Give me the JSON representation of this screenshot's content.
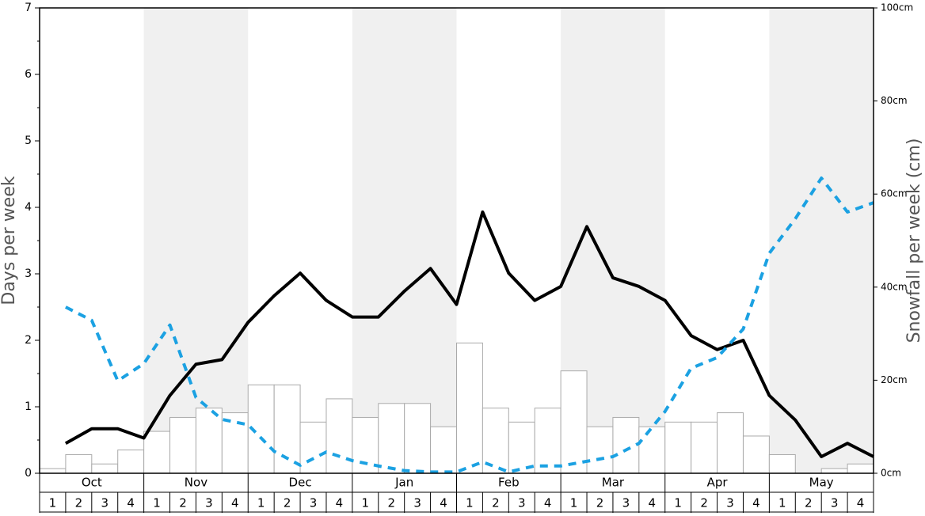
{
  "chart_data": {
    "type": "bar",
    "ylabel": "Days per week",
    "y2label": "Snowfall per week (cm)",
    "months": [
      "Oct",
      "Nov",
      "Dec",
      "Jan",
      "Feb",
      "Mar",
      "Apr",
      "May"
    ],
    "categories": [
      "1",
      "2",
      "3",
      "4",
      "1",
      "2",
      "3",
      "4",
      "1",
      "2",
      "3",
      "4",
      "1",
      "2",
      "3",
      "4",
      "1",
      "2",
      "3",
      "4",
      "1",
      "2",
      "3",
      "4",
      "1",
      "2",
      "3",
      "4",
      "1",
      "2",
      "3",
      "4"
    ],
    "ylim": [
      0,
      7
    ],
    "yticks": [
      0,
      1,
      2,
      3,
      4,
      5,
      6,
      7
    ],
    "yminorticks": [
      0.5,
      1.5,
      2.5,
      3.5,
      4.5,
      5.5,
      6.5
    ],
    "y2lim": [
      0,
      100
    ],
    "y2ticks": [
      {
        "value": 0,
        "label": "0cm"
      },
      {
        "value": 20,
        "label": "20cm"
      },
      {
        "value": 40,
        "label": "40cm"
      },
      {
        "value": 60,
        "label": "60cm"
      },
      {
        "value": 80,
        "label": "80cm"
      },
      {
        "value": 100,
        "label": "100cm"
      }
    ],
    "series": [
      {
        "type": "bar",
        "axis": "y2",
        "color": "#ffffff",
        "values": [
          1,
          4,
          2,
          5,
          9,
          12,
          14,
          13,
          19,
          19,
          11,
          16,
          12,
          15,
          15,
          10,
          28,
          14,
          11,
          14,
          22,
          10,
          12,
          10,
          11,
          11,
          13,
          8,
          4,
          0,
          1,
          2
        ]
      },
      {
        "type": "line",
        "color": "#000000",
        "values": [
          0.45,
          0.67,
          0.67,
          0.53,
          1.17,
          1.64,
          1.71,
          2.27,
          2.67,
          3.01,
          2.6,
          2.35,
          2.35,
          2.74,
          3.08,
          2.54,
          3.93,
          3.01,
          2.6,
          2.81,
          3.71,
          2.94,
          2.81,
          2.6,
          2.07,
          1.86,
          2.0,
          1.17,
          0.8,
          0.25,
          0.45,
          0.25
        ]
      },
      {
        "type": "line",
        "dashed": true,
        "color": "#1ba1e2",
        "values": [
          2.5,
          2.3,
          1.39,
          1.65,
          2.23,
          1.14,
          0.81,
          0.73,
          0.33,
          0.12,
          0.32,
          0.19,
          0.11,
          0.04,
          0.02,
          0.02,
          0.17,
          0.02,
          0.11,
          0.11,
          0.18,
          0.25,
          0.45,
          0.93,
          1.58,
          1.74,
          2.17,
          3.31,
          3.83,
          4.44,
          3.93,
          4.07
        ]
      }
    ]
  }
}
